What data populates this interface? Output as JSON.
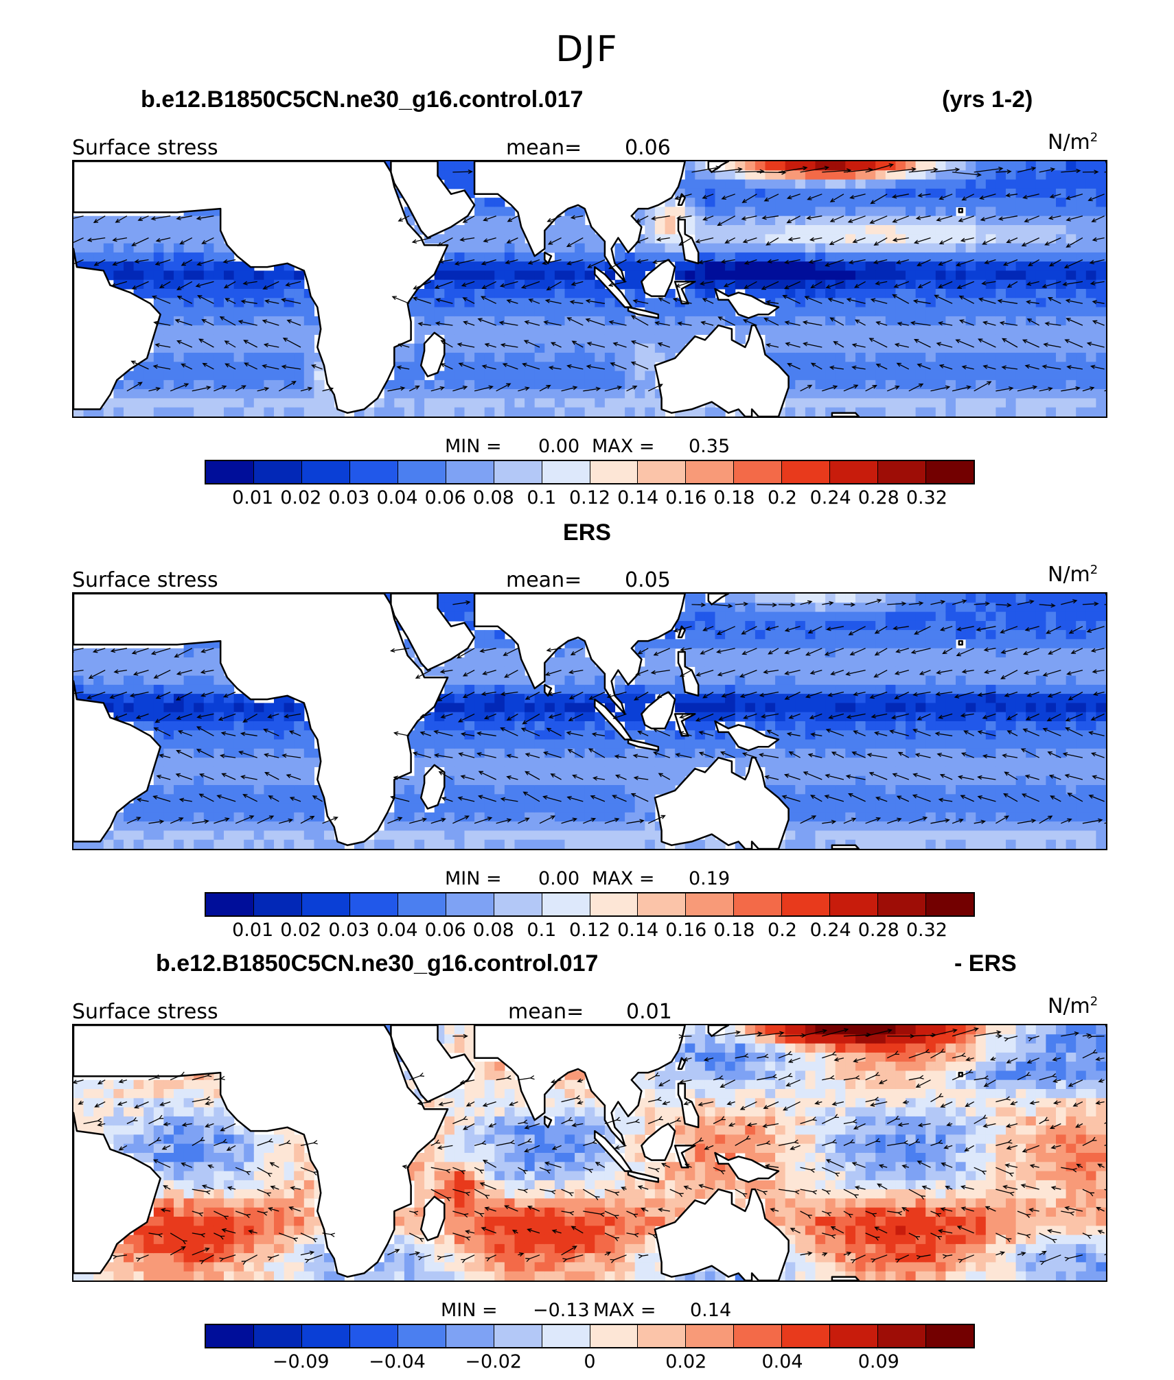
{
  "figure_title": "DJF",
  "colors": {
    "palette": [
      "#000e9a",
      "#0228b7",
      "#0a3fd6",
      "#2158ea",
      "#4b7ff0",
      "#7ea2f4",
      "#b3c8f7",
      "#dde8fb",
      "#fde6d6",
      "#fbc4a9",
      "#f89a78",
      "#f36a48",
      "#e83a1c",
      "#c81c0c",
      "#9e0d06",
      "#730000"
    ],
    "land": "#ffffff",
    "coast": "#000000"
  },
  "panels": [
    {
      "case_title": "b.e12.B1850C5CN.ne30_g16.control.017",
      "right_title": "(yrs 1-2)",
      "variable": "Surface stress",
      "mean_label": "mean=",
      "mean_value": "0.06",
      "units_base": "N/m",
      "units_exp": "2",
      "min_label": "MIN =",
      "min_value": "0.00",
      "max_label": "MAX =",
      "max_value": "0.35",
      "colorbar_ticks": [
        "0.01",
        "0.02",
        "0.03",
        "0.04",
        "0.06",
        "0.08",
        "0.1",
        "0.12",
        "0.14",
        "0.16",
        "0.18",
        "0.2",
        "0.24",
        "0.28",
        "0.32"
      ],
      "field": "model"
    },
    {
      "case_title": "ERS",
      "right_title": "",
      "variable": "Surface stress",
      "mean_label": "mean=",
      "mean_value": "0.05",
      "units_base": "N/m",
      "units_exp": "2",
      "min_label": "MIN =",
      "min_value": "0.00",
      "max_label": "MAX =",
      "max_value": "0.19",
      "colorbar_ticks": [
        "0.01",
        "0.02",
        "0.03",
        "0.04",
        "0.06",
        "0.08",
        "0.1",
        "0.12",
        "0.14",
        "0.16",
        "0.18",
        "0.2",
        "0.24",
        "0.28",
        "0.32"
      ],
      "field": "obs"
    },
    {
      "case_title": "b.e12.B1850C5CN.ne30_g16.control.017",
      "right_title": "- ERS",
      "variable": "Surface stress",
      "mean_label": "mean=",
      "mean_value": "0.01",
      "units_base": "N/m",
      "units_exp": "2",
      "min_label": "MIN =",
      "min_value": "−0.13",
      "max_label": "MAX =",
      "max_value": "0.14",
      "colorbar_ticks": [
        "−0.09",
        "−0.04",
        "−0.02",
        "0",
        "0.02",
        "0.04",
        "0.09"
      ],
      "field": "diff"
    }
  ]
}
